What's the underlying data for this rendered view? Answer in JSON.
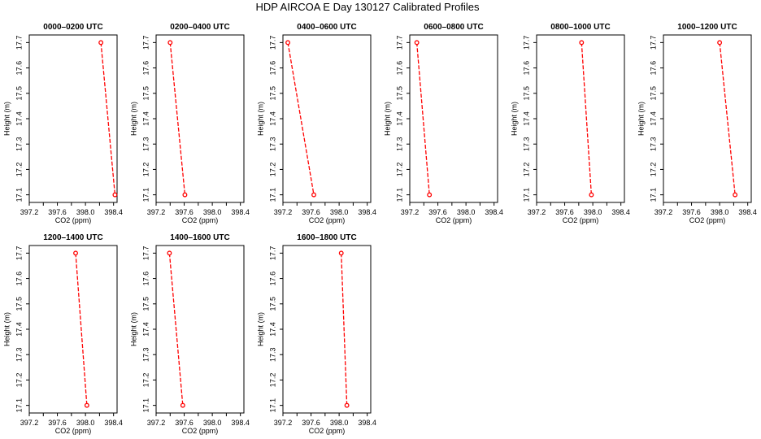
{
  "figure": {
    "title": "HDP AIRCOA E  Day 130127  Calibrated Profiles"
  },
  "chart_data": [
    {
      "type": "line",
      "title": "0000–0200 UTC",
      "xlabel": "CO2 (ppm)",
      "ylabel": "Height (m)",
      "xlim": [
        397.2,
        398.45
      ],
      "ylim": [
        17.07,
        17.73
      ],
      "xticks": [
        "397.2",
        "397.6",
        "398.0",
        "398.4"
      ],
      "xticks_minor": [
        "397.4",
        "397.8",
        "398.2"
      ],
      "yticks": [
        "17.1",
        "17.2",
        "17.3",
        "17.4",
        "17.5",
        "17.6",
        "17.7"
      ],
      "series": [
        {
          "x": [
            398.22,
            398.42
          ],
          "y": [
            17.7,
            17.1
          ],
          "color": "#ff0000"
        }
      ]
    },
    {
      "type": "line",
      "title": "0200–0400 UTC",
      "xlabel": "CO2 (ppm)",
      "ylabel": "Height (m)",
      "xlim": [
        397.2,
        398.45
      ],
      "ylim": [
        17.07,
        17.73
      ],
      "xticks": [
        "397.2",
        "397.6",
        "398.0",
        "398.4"
      ],
      "xticks_minor": [
        "397.4",
        "397.8",
        "398.2"
      ],
      "yticks": [
        "17.1",
        "17.2",
        "17.3",
        "17.4",
        "17.5",
        "17.6",
        "17.7"
      ],
      "series": [
        {
          "x": [
            397.4,
            397.61
          ],
          "y": [
            17.7,
            17.1
          ],
          "color": "#ff0000"
        }
      ]
    },
    {
      "type": "line",
      "title": "0400–0600 UTC",
      "xlabel": "CO2 (ppm)",
      "ylabel": "Height (m)",
      "xlim": [
        397.2,
        398.45
      ],
      "ylim": [
        17.07,
        17.73
      ],
      "xticks": [
        "397.2",
        "397.6",
        "398.0",
        "398.4"
      ],
      "xticks_minor": [
        "397.4",
        "397.8",
        "398.2"
      ],
      "yticks": [
        "17.1",
        "17.2",
        "17.3",
        "17.4",
        "17.5",
        "17.6",
        "17.7"
      ],
      "series": [
        {
          "x": [
            397.27,
            397.64
          ],
          "y": [
            17.7,
            17.1
          ],
          "color": "#ff0000"
        }
      ]
    },
    {
      "type": "line",
      "title": "0600–0800 UTC",
      "xlabel": "CO2 (ppm)",
      "ylabel": "Height (m)",
      "xlim": [
        397.2,
        398.45
      ],
      "ylim": [
        17.07,
        17.73
      ],
      "xticks": [
        "397.2",
        "397.6",
        "398.0",
        "398.4"
      ],
      "xticks_minor": [
        "397.4",
        "397.8",
        "398.2"
      ],
      "yticks": [
        "17.1",
        "17.2",
        "17.3",
        "17.4",
        "17.5",
        "17.6",
        "17.7"
      ],
      "series": [
        {
          "x": [
            397.3,
            397.48
          ],
          "y": [
            17.7,
            17.1
          ],
          "color": "#ff0000"
        }
      ]
    },
    {
      "type": "line",
      "title": "0800–1000 UTC",
      "xlabel": "CO2 (ppm)",
      "ylabel": "Height (m)",
      "xlim": [
        397.2,
        398.45
      ],
      "ylim": [
        17.07,
        17.73
      ],
      "xticks": [
        "397.2",
        "397.6",
        "398.0",
        "398.4"
      ],
      "xticks_minor": [
        "397.4",
        "397.8",
        "398.2"
      ],
      "yticks": [
        "17.1",
        "17.2",
        "17.3",
        "17.4",
        "17.5",
        "17.6",
        "17.7"
      ],
      "series": [
        {
          "x": [
            397.84,
            397.98
          ],
          "y": [
            17.7,
            17.1
          ],
          "color": "#ff0000"
        }
      ]
    },
    {
      "type": "line",
      "title": "1000–1200 UTC",
      "xlabel": "CO2 (ppm)",
      "ylabel": "Height (m)",
      "xlim": [
        397.2,
        398.45
      ],
      "ylim": [
        17.07,
        17.73
      ],
      "xticks": [
        "397.2",
        "397.6",
        "398.0",
        "398.4"
      ],
      "xticks_minor": [
        "397.4",
        "397.8",
        "398.2"
      ],
      "yticks": [
        "17.1",
        "17.2",
        "17.3",
        "17.4",
        "17.5",
        "17.6",
        "17.7"
      ],
      "series": [
        {
          "x": [
            398.0,
            398.22
          ],
          "y": [
            17.7,
            17.1
          ],
          "color": "#ff0000"
        }
      ]
    },
    {
      "type": "line",
      "title": "1200–1400 UTC",
      "xlabel": "CO2 (ppm)",
      "ylabel": "Height (m)",
      "xlim": [
        397.2,
        398.45
      ],
      "ylim": [
        17.07,
        17.73
      ],
      "xticks": [
        "397.2",
        "397.6",
        "398.0",
        "398.4"
      ],
      "xticks_minor": [
        "397.4",
        "397.8",
        "398.2"
      ],
      "yticks": [
        "17.1",
        "17.2",
        "17.3",
        "17.4",
        "17.5",
        "17.6",
        "17.7"
      ],
      "series": [
        {
          "x": [
            397.86,
            398.02
          ],
          "y": [
            17.7,
            17.1
          ],
          "color": "#ff0000"
        }
      ]
    },
    {
      "type": "line",
      "title": "1400–1600 UTC",
      "xlabel": "CO2 (ppm)",
      "ylabel": "Height (m)",
      "xlim": [
        397.2,
        398.45
      ],
      "ylim": [
        17.07,
        17.73
      ],
      "xticks": [
        "397.2",
        "397.6",
        "398.0",
        "398.4"
      ],
      "xticks_minor": [
        "397.4",
        "397.8",
        "398.2"
      ],
      "yticks": [
        "17.1",
        "17.2",
        "17.3",
        "17.4",
        "17.5",
        "17.6",
        "17.7"
      ],
      "series": [
        {
          "x": [
            397.39,
            397.58
          ],
          "y": [
            17.7,
            17.1
          ],
          "color": "#ff0000"
        }
      ]
    },
    {
      "type": "line",
      "title": "1600–1800 UTC",
      "xlabel": "CO2 (ppm)",
      "ylabel": "Height (m)",
      "xlim": [
        397.2,
        398.45
      ],
      "ylim": [
        17.07,
        17.73
      ],
      "xticks": [
        "397.2",
        "397.6",
        "398.0",
        "398.4"
      ],
      "xticks_minor": [
        "397.4",
        "397.8",
        "398.2"
      ],
      "yticks": [
        "17.1",
        "17.2",
        "17.3",
        "17.4",
        "17.5",
        "17.6",
        "17.7"
      ],
      "series": [
        {
          "x": [
            398.03,
            398.11
          ],
          "y": [
            17.7,
            17.1
          ],
          "color": "#ff0000"
        }
      ]
    }
  ]
}
